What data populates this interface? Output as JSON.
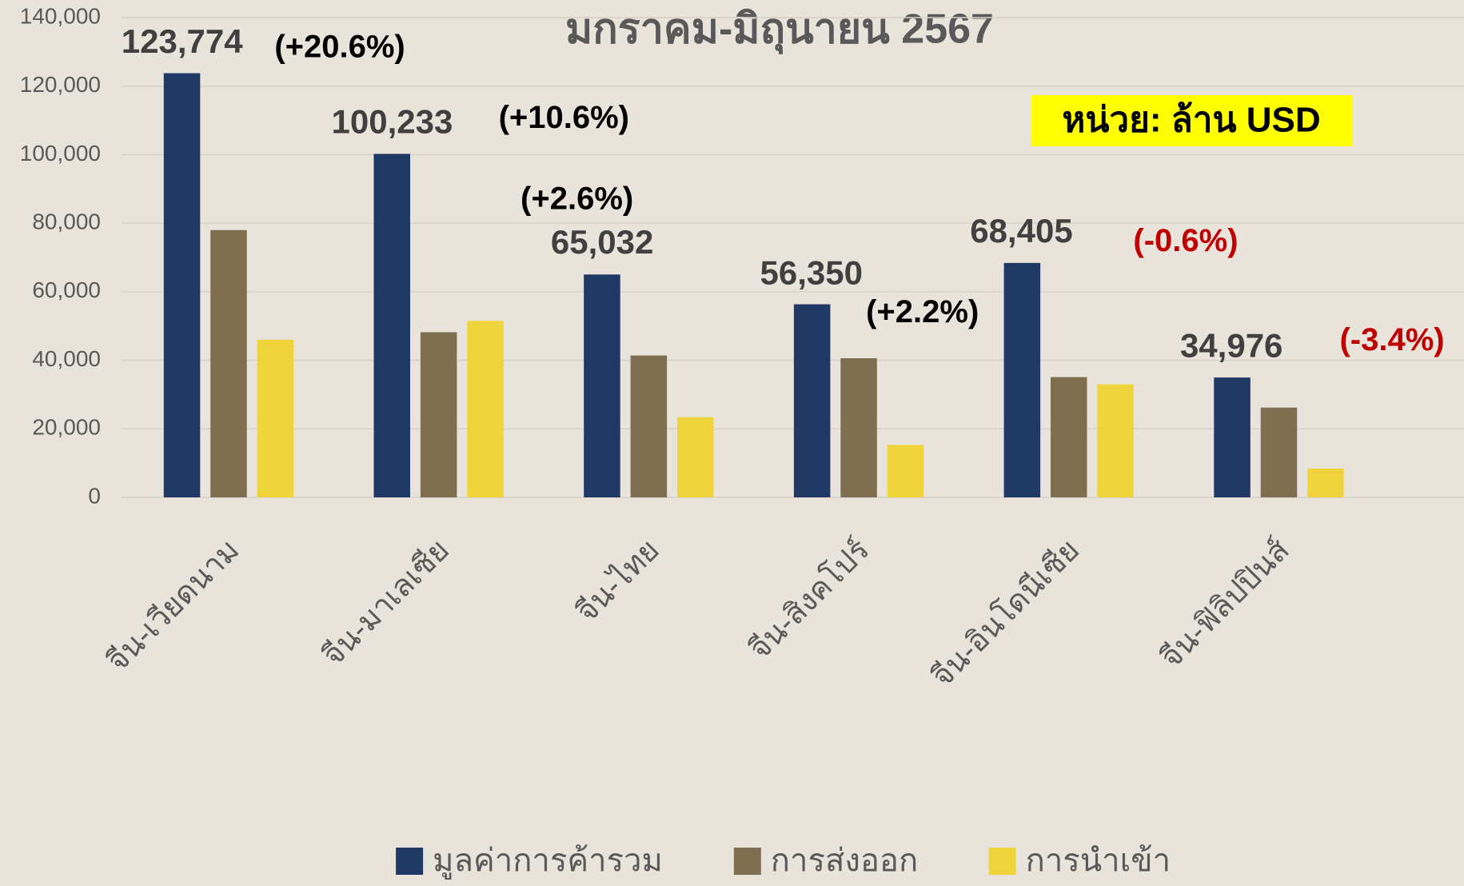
{
  "chart_data": {
    "type": "bar",
    "title": "มกราคม-มิถุนายน 2567",
    "unit_note": "หน่วย: ล้าน USD",
    "categories": [
      "จีน-เวียดนาม",
      "จีน-มาเลเซีย",
      "จีน-ไทย",
      "จีน-สิงคโปร์",
      "จีน-อินโดนีเซีย",
      "จีน-ฟิลิปปินส์"
    ],
    "series": [
      {
        "name": "มูลค่าการค้ารวม",
        "color": "#203864",
        "values": [
          123774,
          100233,
          65032,
          56350,
          68405,
          34976
        ],
        "value_labels": [
          "123,774",
          "100,233",
          "65,032",
          "56,350",
          "68,405",
          "34,976"
        ]
      },
      {
        "name": "การส่งออก",
        "color": "#7f6f50",
        "values": [
          78000,
          48200,
          41400,
          40600,
          35100,
          26200
        ]
      },
      {
        "name": "การนำเข้า",
        "color": "#f0d43c",
        "values": [
          46000,
          51500,
          23400,
          15300,
          33000,
          8400
        ]
      }
    ],
    "annotations": [
      {
        "text": "(+20.6%)",
        "color": "#000000"
      },
      {
        "text": "(+10.6%)",
        "color": "#000000"
      },
      {
        "text": "(+2.6%)",
        "color": "#000000"
      },
      {
        "text": "(+2.2%)",
        "color": "#000000"
      },
      {
        "text": "(-0.6%)",
        "color": "#c00000"
      },
      {
        "text": "(-3.4%)",
        "color": "#c00000"
      }
    ],
    "ylim": [
      0,
      140000
    ],
    "yticks": [
      0,
      {
        "value": 20000,
        "label": "20,000"
      },
      {
        "value": 40000,
        "label": "40,000"
      },
      {
        "value": 60000,
        "label": "60,000"
      },
      {
        "value": 80000,
        "label": "80,000"
      },
      {
        "value": 100000,
        "label": "100,000"
      },
      {
        "value": 120000,
        "label": "120,000"
      },
      {
        "value": 140000,
        "label": "140,000"
      }
    ],
    "grid": true,
    "legend": "bottom"
  }
}
